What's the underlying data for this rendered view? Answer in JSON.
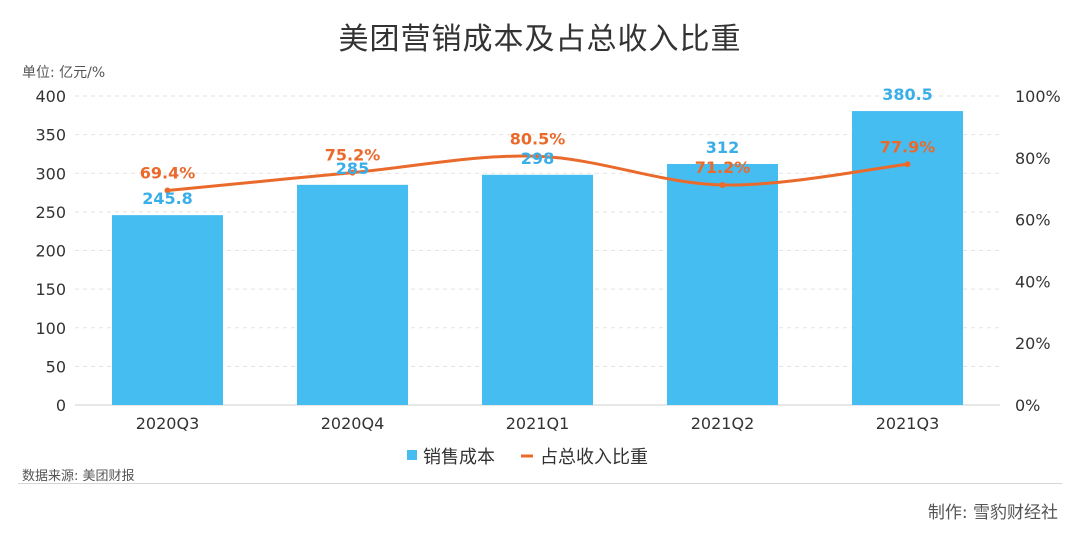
{
  "colors": {
    "bar": "#46bdf0",
    "line": "#ea6a2c",
    "barLabel": "#3aaee8",
    "grid": "#e3e3e3"
  },
  "chart_data": {
    "type": "bar",
    "title": "美团营销成本及占总收入比重",
    "unit_label": "单位: 亿元/%",
    "categories": [
      "2020Q3",
      "2020Q4",
      "2021Q1",
      "2021Q2",
      "2021Q3"
    ],
    "series": [
      {
        "name": "销售成本",
        "type": "bar",
        "axis": "left",
        "values": [
          245.8,
          285,
          298,
          312,
          380.5
        ],
        "labels": [
          "245.8",
          "285",
          "298",
          "312",
          "380.5"
        ]
      },
      {
        "name": "占总收入比重",
        "type": "line",
        "axis": "right",
        "values": [
          69.4,
          75.2,
          80.5,
          71.2,
          77.9
        ],
        "labels": [
          "69.4%",
          "75.2%",
          "80.5%",
          "71.2%",
          "77.9%"
        ]
      }
    ],
    "y_left": {
      "min": 0,
      "max": 400,
      "ticks": [
        "0",
        "50",
        "100",
        "150",
        "200",
        "250",
        "300",
        "350",
        "400"
      ]
    },
    "y_right": {
      "min": 0,
      "max": 100,
      "ticks": [
        "0%",
        "20%",
        "40%",
        "60%",
        "80%",
        "100%"
      ]
    },
    "grid": true,
    "legend": {
      "position": "bottom"
    },
    "source": "数据来源: 美团财报",
    "credit": "制作: 雪豹财经社"
  }
}
